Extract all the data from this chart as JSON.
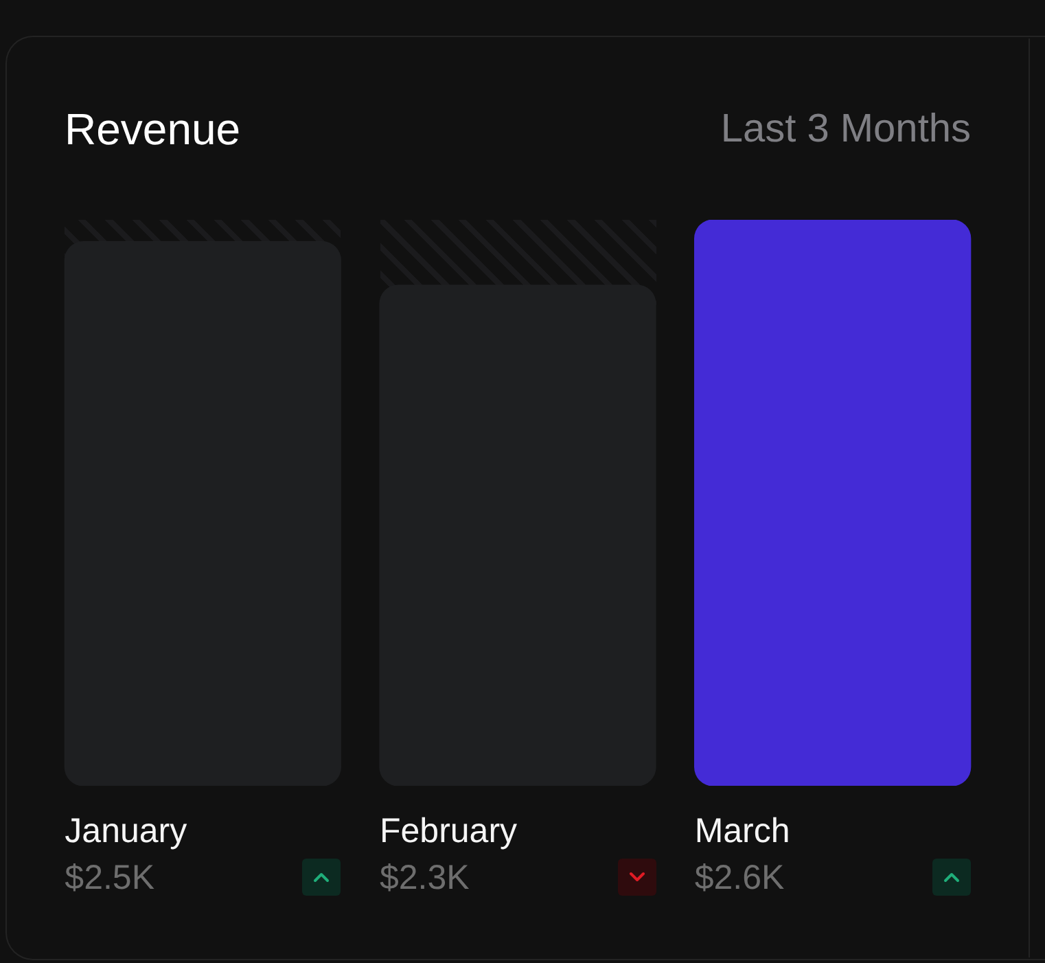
{
  "chart_data": {
    "type": "bar",
    "title": "Revenue",
    "subtitle": "Last 3 Months",
    "categories": [
      "January",
      "February",
      "March"
    ],
    "values": [
      2.5,
      2.3,
      2.6
    ],
    "colors": [
      "#1e1f21",
      "#1e1f21",
      "#442bd6"
    ],
    "value_labels": [
      "$2.5K",
      "$2.3K",
      "$2.6K"
    ],
    "tick_labels": "x"
  }
}
